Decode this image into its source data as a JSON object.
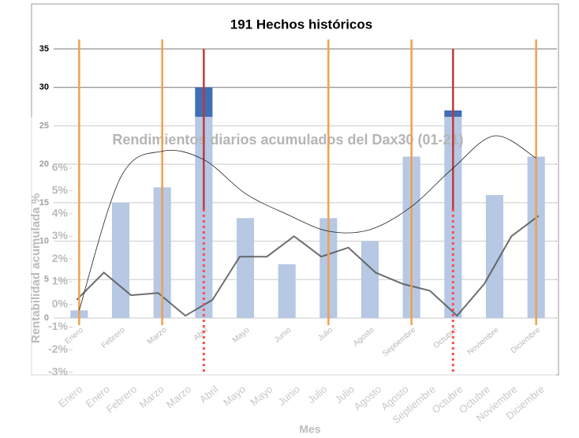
{
  "chart_data": [
    {
      "type": "bar",
      "title": "191 Hechos históricos",
      "categories": [
        "Enero",
        "Febrero",
        "Marzo",
        "Abril",
        "Mayo",
        "Junio",
        "Julio",
        "Agosto",
        "Septiembre",
        "Octubre",
        "Noviembre",
        "Diciembre"
      ],
      "values": [
        1,
        15,
        17,
        30,
        13,
        7,
        13,
        10,
        21,
        27,
        16,
        21
      ],
      "color": "#3f6fb5",
      "trend": {
        "color": "#222222",
        "values": [
          1,
          18.3,
          21.7,
          20.6,
          16.2,
          13.5,
          11.3,
          11.5,
          14.5,
          19.5,
          23.7,
          20.8
        ]
      },
      "vlines": [
        {
          "category": 0,
          "color": "#f0a050"
        },
        {
          "category": 2,
          "color": "#f0a050"
        },
        {
          "category": 6,
          "color": "#f0a050"
        },
        {
          "category": 8,
          "color": "#f0a050"
        },
        {
          "category": 11,
          "color": "#f0a050"
        },
        {
          "category": 3,
          "color": "#c0393b"
        },
        {
          "category": 9,
          "color": "#c0393b"
        }
      ],
      "ylim": [
        0,
        35
      ],
      "yticks": [
        0,
        5,
        10,
        15,
        20,
        25,
        30,
        35
      ],
      "grid": true
    },
    {
      "type": "line",
      "title": "Rendimientos diarios acumulados del Dax30 (01-21)",
      "x_label": "Mes",
      "y_label": "Rentabilidad acumulada %",
      "categories": [
        "Enero",
        "Enero",
        "Febrero",
        "Marzo",
        "Marzo",
        "Abril",
        "Mayo",
        "Mayo",
        "Junio",
        "Julio",
        "Julio",
        "Agosto",
        "Agosto",
        "Septiembre",
        "Octubre",
        "Octubre",
        "Noviembre",
        "Diciembre"
      ],
      "series": [
        {
          "color": "#555555",
          "values": [
            0.2,
            1.4,
            0.4,
            0.5,
            -0.5,
            0.2,
            2.1,
            2.1,
            3.0,
            2.1,
            2.5,
            1.4,
            0.9,
            0.6,
            -0.5,
            0.9,
            3.0,
            3.9
          ]
        }
      ],
      "ylim": [
        -3,
        6
      ],
      "yticks": [
        {
          "value": -3,
          "label": "-3%"
        },
        {
          "value": -2,
          "label": "-2%"
        },
        {
          "value": -1,
          "label": "-1%"
        },
        {
          "value": 0,
          "label": "0%"
        },
        {
          "value": 1,
          "label": "1%"
        },
        {
          "value": 2,
          "label": "2%"
        },
        {
          "value": 3,
          "label": "3%"
        },
        {
          "value": 4,
          "label": "4%"
        },
        {
          "value": 5,
          "label": "5%"
        },
        {
          "value": 6,
          "label": "6%"
        }
      ]
    }
  ]
}
